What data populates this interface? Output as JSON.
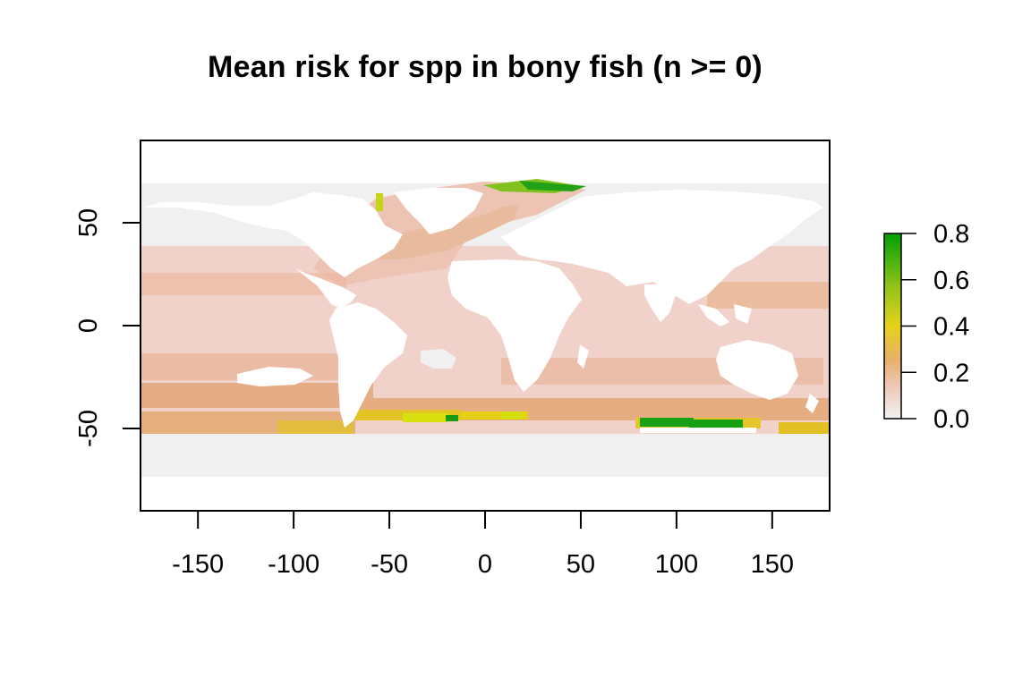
{
  "title": "Mean risk for spp in bony fish (n >= 0)",
  "chart_data": {
    "type": "heatmap",
    "title": "Mean risk for spp in bony fish (n >= 0)",
    "xlabel": "",
    "ylabel": "",
    "xlim": [
      -180,
      180
    ],
    "ylim": [
      -90,
      90
    ],
    "x_ticks": [
      -150,
      -100,
      -50,
      0,
      50,
      100,
      150
    ],
    "y_ticks": [
      -50,
      0,
      50
    ],
    "x_tick_labels": [
      "-150",
      "-100",
      "-50",
      "0",
      "50",
      "100",
      "150"
    ],
    "y_tick_labels": [
      "-50",
      "0",
      "50"
    ],
    "legend": {
      "position": "right",
      "min": 0.0,
      "max": 0.8,
      "ticks": [
        0.0,
        0.2,
        0.4,
        0.6,
        0.8
      ],
      "tick_labels": [
        "0.0",
        "0.2",
        "0.4",
        "0.6",
        "0.8"
      ],
      "colors": [
        "#f2f2f2",
        "#eec7b5",
        "#e8b06a",
        "#e6d21a",
        "#8fc21a",
        "#00a000"
      ]
    },
    "colors": {
      "no_data": "#f0f0f0",
      "land": "#ffffff",
      "low_risk": "#f0d0c8",
      "mid_risk": "#e8b07a",
      "high_risk": "#e0d020",
      "very_high_risk": "#10a010"
    }
  }
}
